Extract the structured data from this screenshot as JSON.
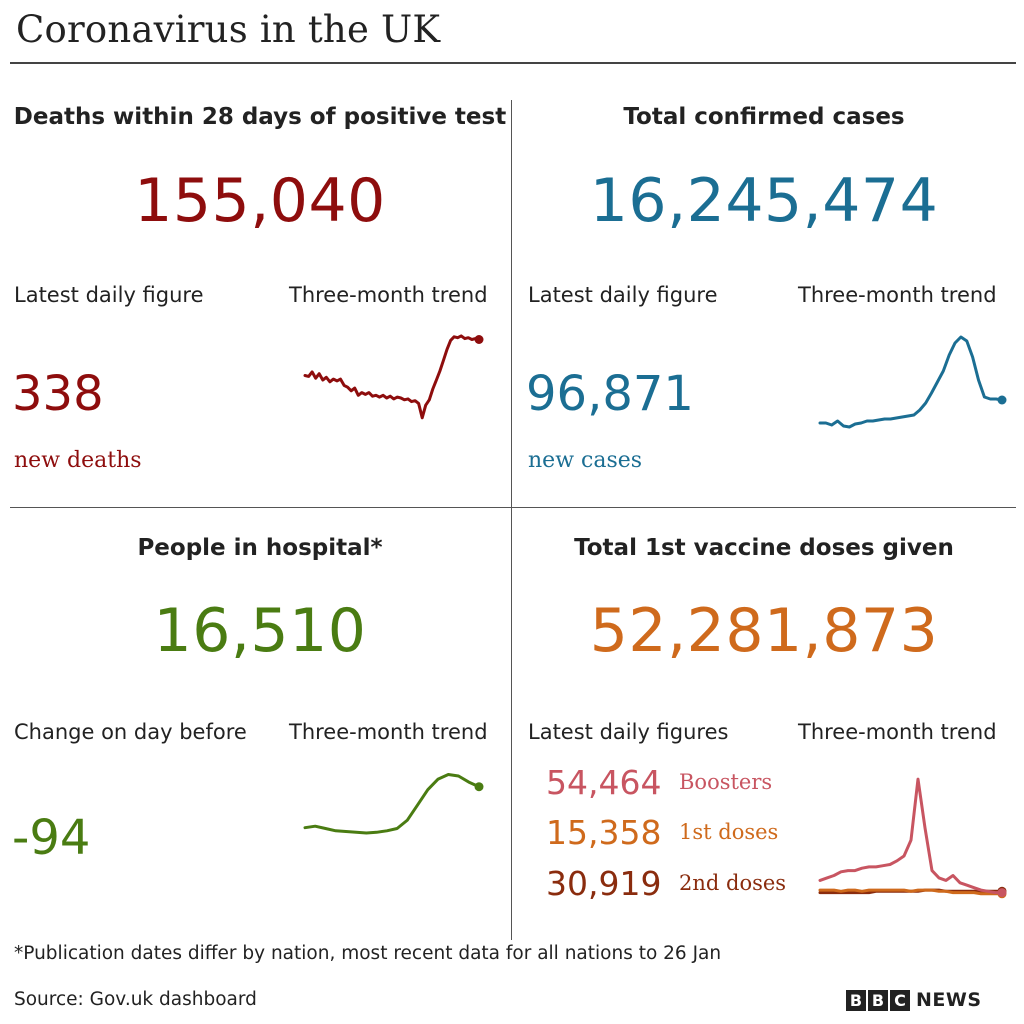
{
  "title": "Coronavirus in the UK",
  "colors": {
    "deaths": "#8e0d0d",
    "cases": "#1b6e93",
    "hospital": "#4a7c12",
    "boosters": "#c85561",
    "first_doses": "#cf6a1c",
    "second_doses": "#8a2c0e"
  },
  "panels": {
    "deaths": {
      "heading": "Deaths within 28 days of positive test",
      "total": "155,040",
      "daily_label": "Latest daily figure",
      "trend_label": "Three-month trend",
      "daily_value": "338",
      "daily_unit": "new deaths"
    },
    "cases": {
      "heading": "Total confirmed cases",
      "total": "16,245,474",
      "daily_label": "Latest daily figure",
      "trend_label": "Three-month trend",
      "daily_value": "96,871",
      "daily_unit": "new cases"
    },
    "hospital": {
      "heading": "People in hospital*",
      "total": "16,510",
      "daily_label": "Change on day before",
      "trend_label": "Three-month trend",
      "daily_value": "-94"
    },
    "vaccine": {
      "heading": "Total 1st vaccine doses given",
      "total": "52,281,873",
      "daily_label": "Latest daily figures",
      "trend_label": "Three-month trend",
      "rows": [
        {
          "value": "54,464",
          "label": "Boosters"
        },
        {
          "value": "15,358",
          "label": "1st doses"
        },
        {
          "value": "30,919",
          "label": "2nd doses"
        }
      ]
    }
  },
  "chart_data": [
    {
      "type": "line",
      "series": [
        {
          "values": [
            0.45,
            0.46,
            0.41,
            0.48,
            0.43,
            0.5,
            0.47,
            0.52,
            0.49,
            0.51,
            0.49,
            0.56,
            0.58,
            0.62,
            0.59,
            0.67,
            0.64,
            0.66,
            0.64,
            0.68,
            0.67,
            0.69,
            0.67,
            0.7,
            0.68,
            0.71,
            0.69,
            0.7,
            0.72,
            0.71,
            0.74,
            0.73,
            0.76,
            0.92,
            0.78,
            0.72,
            0.6,
            0.5,
            0.4,
            0.28,
            0.16,
            0.06,
            0.02,
            0.03,
            0.01,
            0.04,
            0.03,
            0.05,
            0.04,
            0.05
          ]
        }
      ]
    },
    {
      "type": "line",
      "series": [
        {
          "values": [
            0.88,
            0.88,
            0.9,
            0.86,
            0.91,
            0.92,
            0.89,
            0.88,
            0.86,
            0.86,
            0.85,
            0.84,
            0.84,
            0.83,
            0.82,
            0.81,
            0.8,
            0.75,
            0.68,
            0.58,
            0.47,
            0.36,
            0.2,
            0.08,
            0.02,
            0.06,
            0.22,
            0.45,
            0.62,
            0.64,
            0.64,
            0.65
          ]
        }
      ]
    },
    {
      "type": "line",
      "series": [
        {
          "values": [
            0.72,
            0.7,
            0.73,
            0.76,
            0.77,
            0.78,
            0.79,
            0.78,
            0.76,
            0.73,
            0.62,
            0.42,
            0.22,
            0.08,
            0.02,
            0.04,
            0.12,
            0.18
          ]
        }
      ]
    },
    {
      "type": "line",
      "series": [
        {
          "name": "Boosters",
          "values": [
            0.88,
            0.86,
            0.84,
            0.81,
            0.8,
            0.8,
            0.78,
            0.77,
            0.77,
            0.76,
            0.75,
            0.72,
            0.68,
            0.55,
            0.05,
            0.45,
            0.8,
            0.86,
            0.88,
            0.84,
            0.9,
            0.92,
            0.94,
            0.96,
            0.97,
            0.98,
            0.98
          ]
        },
        {
          "name": "1st doses",
          "values": [
            0.96,
            0.96,
            0.96,
            0.97,
            0.96,
            0.96,
            0.97,
            0.96,
            0.96,
            0.96,
            0.96,
            0.96,
            0.96,
            0.97,
            0.96,
            0.96,
            0.96,
            0.97,
            0.97,
            0.98,
            0.98,
            0.98,
            0.98,
            0.99,
            0.99,
            0.99,
            0.99
          ]
        },
        {
          "name": "2nd doses",
          "values": [
            0.98,
            0.98,
            0.98,
            0.98,
            0.98,
            0.98,
            0.98,
            0.98,
            0.97,
            0.97,
            0.97,
            0.97,
            0.97,
            0.97,
            0.97,
            0.96,
            0.96,
            0.96,
            0.97,
            0.97,
            0.97,
            0.97,
            0.97,
            0.97,
            0.97,
            0.97,
            0.97
          ]
        }
      ]
    }
  ],
  "footnote": "*Publication dates differ by nation, most recent data for all nations to 26 Jan",
  "source": "Source: Gov.uk dashboard",
  "brand": {
    "b1": "B",
    "b2": "B",
    "b3": "C",
    "news": "NEWS"
  }
}
